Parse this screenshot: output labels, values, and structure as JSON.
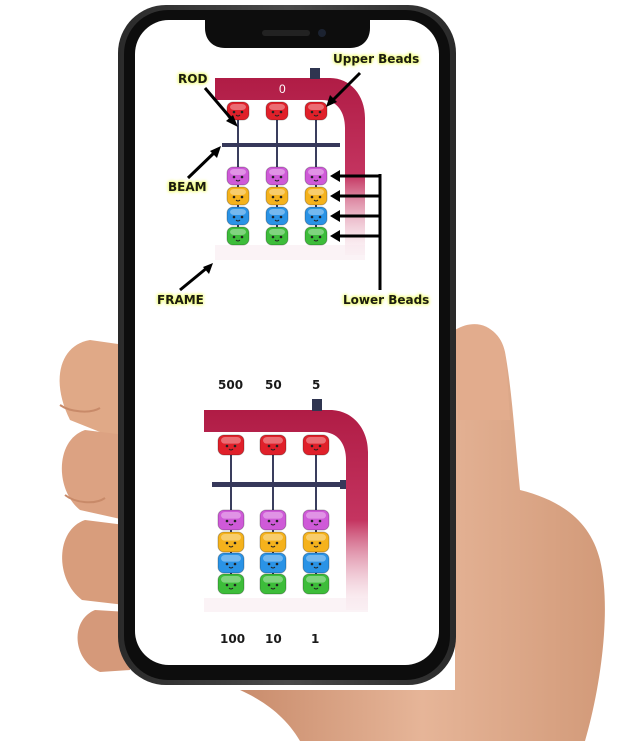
{
  "diagram": {
    "labels": {
      "rod": "ROD",
      "upper_beads": "Upper Beads",
      "beam": "BEAM",
      "frame": "FRAME",
      "lower_beads": "Lower Beads"
    },
    "counter_value": "0"
  },
  "place_values": {
    "upper": [
      "500",
      "50",
      "5"
    ],
    "lower": [
      "100",
      "10",
      "1"
    ]
  },
  "colors": {
    "frame": "#b01c45",
    "beam": "#36385a",
    "upper_bead": "#e0202a",
    "lower_beads": [
      "#cf5ad8",
      "#f5b21c",
      "#2a93e6",
      "#3dbd3a"
    ],
    "label_glow": "#f2ff7a"
  },
  "icons": {
    "arrow": "black-arrow-icon"
  }
}
